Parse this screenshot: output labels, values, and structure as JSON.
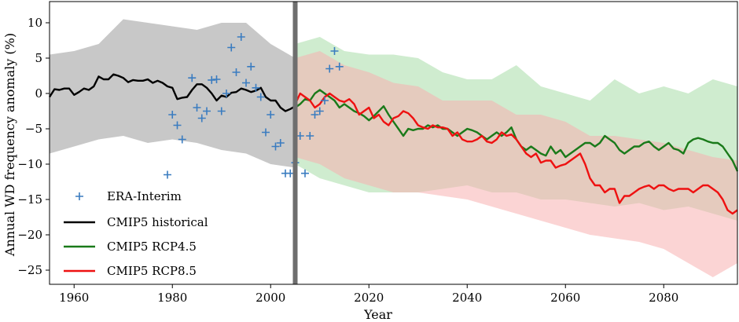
{
  "chart_data": {
    "type": "line",
    "title": "",
    "xlabel": "Year",
    "ylabel": "Annual WD frequency anomaly (%)",
    "xlim": [
      1955,
      2095
    ],
    "ylim": [
      -27,
      13
    ],
    "xticks": [
      1960,
      1980,
      2000,
      2020,
      2040,
      2060,
      2080
    ],
    "yticks": [
      10,
      5,
      0,
      -5,
      -10,
      -15,
      -20,
      -25
    ],
    "grid": false,
    "legend_position": "lower-left",
    "divider_year": 2005,
    "colors": {
      "historical": "#000000",
      "historical_band": "#c8c8c8",
      "rcp45": "#1a7a1a",
      "rcp45_band": "#a8dca8",
      "rcp85": "#ee1111",
      "rcp85_band": "#f8b0b0",
      "era": "#3a7cc0",
      "divider": "#6e6e6e"
    },
    "legend": [
      {
        "label": "ERA-Interim",
        "kind": "marker",
        "color": "#3a7cc0"
      },
      {
        "label": "CMIP5 historical",
        "kind": "line",
        "color": "#000000"
      },
      {
        "label": "CMIP5 RCP4.5",
        "kind": "line",
        "color": "#1a7a1a"
      },
      {
        "label": "CMIP5 RCP8.5",
        "kind": "line",
        "color": "#ee1111"
      }
    ],
    "series": [
      {
        "name": "CMIP5 historical",
        "x": [
          1955,
          1956,
          1957,
          1958,
          1959,
          1960,
          1961,
          1962,
          1963,
          1964,
          1965,
          1966,
          1967,
          1968,
          1969,
          1970,
          1971,
          1972,
          1973,
          1974,
          1975,
          1976,
          1977,
          1978,
          1979,
          1980,
          1981,
          1982,
          1983,
          1984,
          1985,
          1986,
          1987,
          1988,
          1989,
          1990,
          1991,
          1992,
          1993,
          1994,
          1995,
          1996,
          1997,
          1998,
          1999,
          2000,
          2001,
          2002,
          2003,
          2004,
          2005
        ],
        "y": [
          -0.5,
          0.6,
          0.5,
          0.7,
          0.7,
          -0.2,
          0.2,
          0.7,
          0.5,
          1.0,
          2.4,
          2.0,
          2.0,
          2.7,
          2.5,
          2.2,
          1.6,
          1.9,
          1.8,
          1.8,
          2.0,
          1.5,
          1.8,
          1.5,
          1.0,
          0.8,
          -0.8,
          -0.6,
          -0.5,
          0.5,
          1.3,
          1.3,
          0.8,
          0.0,
          -1.0,
          -0.3,
          -0.5,
          0.1,
          0.2,
          0.7,
          0.5,
          0.2,
          0.4,
          0.8,
          -0.5,
          -1.0,
          -1.0,
          -2.0,
          -2.5,
          -2.2,
          -1.8
        ]
      },
      {
        "name": "CMIP5 RCP4.5",
        "x": [
          2005,
          2006,
          2007,
          2008,
          2009,
          2010,
          2011,
          2012,
          2013,
          2014,
          2015,
          2016,
          2017,
          2018,
          2019,
          2020,
          2021,
          2022,
          2023,
          2024,
          2025,
          2026,
          2027,
          2028,
          2029,
          2030,
          2031,
          2032,
          2033,
          2034,
          2035,
          2036,
          2037,
          2038,
          2039,
          2040,
          2041,
          2042,
          2043,
          2044,
          2045,
          2046,
          2047,
          2048,
          2049,
          2050,
          2051,
          2052,
          2053,
          2054,
          2055,
          2056,
          2057,
          2058,
          2059,
          2060,
          2061,
          2062,
          2063,
          2064,
          2065,
          2066,
          2067,
          2068,
          2069,
          2070,
          2071,
          2072,
          2073,
          2074,
          2075,
          2076,
          2077,
          2078,
          2079,
          2080,
          2081,
          2082,
          2083,
          2084,
          2085,
          2086,
          2087,
          2088,
          2089,
          2090,
          2091,
          2092,
          2093,
          2094,
          2095
        ],
        "y": [
          -2.0,
          -1.5,
          -0.8,
          -1.0,
          0.0,
          0.5,
          0.0,
          -0.5,
          -1.0,
          -2.0,
          -1.5,
          -2.0,
          -2.5,
          -2.8,
          -3.2,
          -3.8,
          -3.2,
          -2.5,
          -1.8,
          -3.0,
          -4.0,
          -5.0,
          -6.0,
          -5.0,
          -5.2,
          -5.0,
          -5.0,
          -4.5,
          -4.8,
          -4.5,
          -5.0,
          -5.0,
          -5.5,
          -6.0,
          -5.5,
          -5.0,
          -5.2,
          -5.5,
          -6.0,
          -6.5,
          -6.0,
          -5.5,
          -6.0,
          -5.5,
          -4.8,
          -6.5,
          -7.5,
          -8.0,
          -7.5,
          -8.0,
          -8.5,
          -8.8,
          -7.5,
          -8.5,
          -8.0,
          -9.0,
          -8.5,
          -8.0,
          -7.5,
          -7.0,
          -7.0,
          -7.5,
          -7.0,
          -6.0,
          -6.5,
          -7.0,
          -8.0,
          -8.5,
          -8.0,
          -7.5,
          -7.5,
          -7.0,
          -6.8,
          -7.5,
          -8.0,
          -7.5,
          -7.0,
          -7.8,
          -8.0,
          -8.5,
          -7.0,
          -6.5,
          -6.3,
          -6.5,
          -6.8,
          -7.0,
          -7.0,
          -7.5,
          -8.5,
          -9.5,
          -11.0
        ]
      },
      {
        "name": "CMIP5 RCP8.5",
        "x": [
          2005,
          2006,
          2007,
          2008,
          2009,
          2010,
          2011,
          2012,
          2013,
          2014,
          2015,
          2016,
          2017,
          2018,
          2019,
          2020,
          2021,
          2022,
          2023,
          2024,
          2025,
          2026,
          2027,
          2028,
          2029,
          2030,
          2031,
          2032,
          2033,
          2034,
          2035,
          2036,
          2037,
          2038,
          2039,
          2040,
          2041,
          2042,
          2043,
          2044,
          2045,
          2046,
          2047,
          2048,
          2049,
          2050,
          2051,
          2052,
          2053,
          2054,
          2055,
          2056,
          2057,
          2058,
          2059,
          2060,
          2061,
          2062,
          2063,
          2064,
          2065,
          2066,
          2067,
          2068,
          2069,
          2070,
          2071,
          2072,
          2073,
          2074,
          2075,
          2076,
          2077,
          2078,
          2079,
          2080,
          2081,
          2082,
          2083,
          2084,
          2085,
          2086,
          2087,
          2088,
          2089,
          2090,
          2091,
          2092,
          2093,
          2094,
          2095
        ],
        "y": [
          -1.5,
          0.0,
          -0.5,
          -1.0,
          -2.0,
          -1.5,
          -0.5,
          0.0,
          -0.5,
          -1.0,
          -1.2,
          -0.8,
          -1.5,
          -3.0,
          -2.5,
          -2.0,
          -3.5,
          -3.0,
          -4.0,
          -4.5,
          -3.5,
          -3.2,
          -2.5,
          -2.8,
          -3.5,
          -4.5,
          -4.8,
          -5.0,
          -4.5,
          -4.8,
          -4.8,
          -5.0,
          -6.0,
          -5.5,
          -6.5,
          -6.8,
          -6.8,
          -6.5,
          -6.0,
          -6.8,
          -7.0,
          -6.5,
          -5.5,
          -6.0,
          -5.8,
          -6.5,
          -7.5,
          -8.5,
          -9.0,
          -8.5,
          -9.8,
          -9.5,
          -9.5,
          -10.5,
          -10.2,
          -10.0,
          -9.5,
          -9.0,
          -8.5,
          -10.0,
          -12.0,
          -13.0,
          -13.0,
          -14.0,
          -13.5,
          -13.5,
          -15.5,
          -14.5,
          -14.5,
          -14.0,
          -13.5,
          -13.2,
          -13.0,
          -13.5,
          -13.0,
          -13.0,
          -13.5,
          -13.8,
          -13.5,
          -13.5,
          -13.5,
          -14.0,
          -13.5,
          -13.0,
          -13.0,
          -13.5,
          -14.0,
          -15.0,
          -16.5,
          -17.0,
          -16.5
        ]
      }
    ],
    "bands": [
      {
        "of": "CMIP5 historical",
        "x": [
          1955,
          1960,
          1965,
          1970,
          1975,
          1980,
          1985,
          1990,
          1995,
          2000,
          2005
        ],
        "upper": [
          5.5,
          6.0,
          7.0,
          10.5,
          10.0,
          9.5,
          9.0,
          10.0,
          10.0,
          7.0,
          5.0
        ],
        "lower": [
          -8.5,
          -7.5,
          -6.5,
          -6.0,
          -7.0,
          -6.5,
          -7.0,
          -8.0,
          -8.5,
          -10.0,
          -10.5
        ]
      },
      {
        "of": "CMIP5 RCP4.5",
        "x": [
          2005,
          2010,
          2015,
          2020,
          2025,
          2030,
          2035,
          2040,
          2045,
          2050,
          2055,
          2060,
          2065,
          2070,
          2075,
          2080,
          2085,
          2090,
          2095
        ],
        "upper": [
          7.0,
          8.0,
          6.0,
          5.5,
          5.5,
          5.0,
          3.0,
          2.0,
          2.0,
          4.0,
          1.0,
          0.0,
          -1.0,
          2.0,
          0.0,
          1.0,
          0.0,
          2.0,
          1.0
        ],
        "lower": [
          -10.0,
          -12.0,
          -13.0,
          -14.0,
          -14.0,
          -14.0,
          -13.5,
          -13.0,
          -14.0,
          -14.0,
          -15.0,
          -15.0,
          -15.5,
          -16.0,
          -15.5,
          -16.5,
          -16.0,
          -17.0,
          -18.0
        ]
      },
      {
        "of": "CMIP5 RCP8.5",
        "x": [
          2005,
          2010,
          2015,
          2020,
          2025,
          2030,
          2035,
          2040,
          2045,
          2050,
          2055,
          2060,
          2065,
          2070,
          2075,
          2080,
          2085,
          2090,
          2095
        ],
        "upper": [
          5.0,
          6.0,
          4.0,
          3.0,
          1.5,
          1.0,
          -1.0,
          -1.0,
          -1.0,
          -3.0,
          -3.0,
          -4.0,
          -6.0,
          -6.0,
          -6.5,
          -7.0,
          -8.0,
          -9.0,
          -9.5
        ],
        "lower": [
          -9.0,
          -10.0,
          -12.0,
          -13.0,
          -14.0,
          -14.0,
          -14.5,
          -15.0,
          -16.0,
          -17.0,
          -18.0,
          -19.0,
          -20.0,
          -20.5,
          -21.0,
          -22.0,
          -24.0,
          -26.0,
          -24.0
        ]
      }
    ],
    "scatter": {
      "name": "ERA-Interim",
      "points": [
        [
          1979,
          -11.5
        ],
        [
          1980,
          -3.0
        ],
        [
          1981,
          -4.5
        ],
        [
          1982,
          -6.5
        ],
        [
          1984,
          2.2
        ],
        [
          1985,
          -2.0
        ],
        [
          1986,
          -3.5
        ],
        [
          1987,
          -2.5
        ],
        [
          1988,
          1.9
        ],
        [
          1989,
          2.0
        ],
        [
          1990,
          -2.5
        ],
        [
          1991,
          0.0
        ],
        [
          1992,
          6.5
        ],
        [
          1993,
          3.0
        ],
        [
          1994,
          8.0
        ],
        [
          1995,
          1.5
        ],
        [
          1996,
          3.8
        ],
        [
          1997,
          0.8
        ],
        [
          1998,
          -0.5
        ],
        [
          1999,
          -5.5
        ],
        [
          2000,
          -3.0
        ],
        [
          2001,
          -7.5
        ],
        [
          2002,
          -7.0
        ],
        [
          2003,
          -11.3
        ],
        [
          2004,
          -11.3
        ],
        [
          2005,
          -9.8
        ],
        [
          2006,
          -6.0
        ],
        [
          2007,
          -11.3
        ],
        [
          2008,
          -6.0
        ],
        [
          2009,
          -3.0
        ],
        [
          2010,
          -2.5
        ],
        [
          2011,
          -1.0
        ],
        [
          2012,
          3.5
        ],
        [
          2013,
          6.0
        ],
        [
          2014,
          3.8
        ]
      ]
    }
  }
}
